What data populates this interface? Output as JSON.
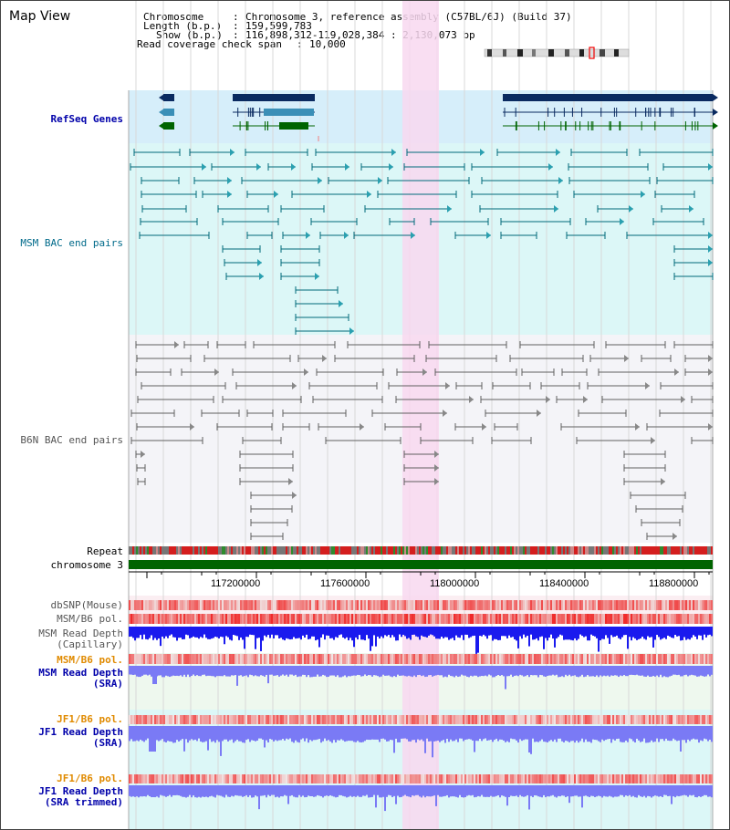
{
  "title": "Map View",
  "header": {
    "chromosome_label": "Chromosome",
    "chromosome_value": "Chromosome 3, reference assembly (C57BL/6J) (Build 37)",
    "length_label": "Length (b.p.)",
    "length_value": "159,599,783",
    "show_label": "Show (b.p.)",
    "show_value": "116,898,312-119,028,384 : 2,130,073 bp",
    "span_label": "Read coverage check span",
    "span_value": "10,000"
  },
  "tracks": {
    "refseq": "RefSeq Genes",
    "msm_bac": "MSM BAC end pairs",
    "b6n_bac": "B6N BAC end pairs",
    "repeat": "Repeat",
    "chromosome": "chromosome 3",
    "dbsnp": "dbSNP(Mouse)",
    "msm_b6_pol_1": "MSM/B6 pol.",
    "msm_read_depth_cap_1": "MSM Read Depth",
    "msm_read_depth_cap_2": "(Capillary)",
    "msm_b6_pol_2": "MSM/B6 pol.",
    "msm_read_depth_sra_1": "MSM Read Depth",
    "msm_read_depth_sra_2": "(SRA)",
    "jf1_b6_pol_1": "JF1/B6 pol.",
    "jf1_read_depth_sra_1": "JF1 Read Depth",
    "jf1_read_depth_sra_2": "(SRA)",
    "jf1_b6_pol_2": "JF1/B6 pol.",
    "jf1_read_depth_trim_1": "JF1 Read Depth",
    "jf1_read_depth_trim_2": "(SRA trimmed)"
  },
  "axis": {
    "ticks": [
      "117200000",
      "117600000",
      "118000000",
      "118400000",
      "118800000"
    ]
  },
  "colors": {
    "refseq_bg": "#d6eefa",
    "msm_bg": "#dcf7f7",
    "b6n_bg": "#f4f4f8",
    "highlight": "#f8d8f0",
    "gene_dark": "#0a2a60",
    "gene_mid": "#3a8fb7",
    "gene_green": "#006400",
    "msm_line": "#006a7a",
    "b6n_line": "#606060",
    "depth_blue": "#1a1aee",
    "depth_light": "#7a7af5",
    "orange_label": "#e08a00",
    "blue_label": "#0000aa"
  }
}
